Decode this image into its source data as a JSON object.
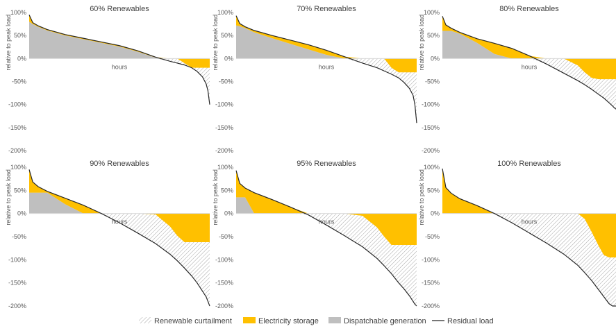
{
  "legend": [
    {
      "key": "curtailment",
      "label": "Renewable curtailment",
      "color": "#bfbfbf",
      "pattern": "hatch"
    },
    {
      "key": "storage",
      "label": "Electricity storage",
      "color": "#ffc000"
    },
    {
      "key": "dispatchable",
      "label": "Dispatchable generation",
      "color": "#bfbfbf"
    },
    {
      "key": "residual",
      "label": "Residual load",
      "color": "#404040"
    }
  ],
  "colors": {
    "storage": "#ffc000",
    "dispatchable": "#bfbfbf",
    "hatch": "#a6a6a6",
    "line": "#262626",
    "axis": "#d9d9d9"
  },
  "chart_data": [
    {
      "type": "area",
      "title": "60% Renewables",
      "xlabel": "hours",
      "ylabel": "relative to peak load",
      "ylim": [
        -200,
        100
      ],
      "yticks": [
        100,
        50,
        0,
        -50,
        -100,
        -150,
        -200
      ],
      "x": [
        0,
        0.02,
        0.05,
        0.1,
        0.2,
        0.3,
        0.4,
        0.5,
        0.6,
        0.7,
        0.78,
        0.82,
        0.86,
        0.9,
        0.93,
        0.96,
        0.98,
        0.99,
        1.0
      ],
      "series": [
        {
          "name": "Residual load",
          "values": [
            95,
            78,
            71,
            63,
            52,
            44,
            36,
            28,
            17,
            3,
            -6,
            -10,
            -14,
            -20,
            -28,
            -40,
            -55,
            -70,
            -100
          ]
        },
        {
          "name": "Dispatchable generation",
          "values": [
            80,
            75,
            69,
            61,
            50,
            42,
            34,
            26,
            15,
            2,
            0,
            0,
            0,
            0,
            0,
            0,
            0,
            0,
            0
          ]
        },
        {
          "name": "Electricity storage",
          "values": [
            0,
            0,
            0,
            0,
            0,
            0,
            0,
            0,
            0,
            0,
            0,
            0,
            -10,
            -20,
            -20,
            -20,
            -20,
            -20,
            -20
          ]
        }
      ]
    },
    {
      "type": "area",
      "title": "70% Renewables",
      "xlabel": "hours",
      "ylabel": "relative to peak load",
      "ylim": [
        -200,
        100
      ],
      "yticks": [
        100,
        50,
        0,
        -50,
        -100,
        -150,
        -200
      ],
      "x": [
        0,
        0.02,
        0.05,
        0.1,
        0.2,
        0.3,
        0.4,
        0.5,
        0.6,
        0.7,
        0.78,
        0.82,
        0.86,
        0.9,
        0.93,
        0.96,
        0.98,
        0.99,
        1.0
      ],
      "series": [
        {
          "name": "Residual load",
          "values": [
            93,
            76,
            69,
            61,
            50,
            40,
            30,
            18,
            4,
            -10,
            -20,
            -27,
            -34,
            -42,
            -52,
            -65,
            -80,
            -100,
            -140
          ]
        },
        {
          "name": "Dispatchable generation",
          "values": [
            72,
            70,
            66,
            57,
            44,
            32,
            20,
            8,
            0,
            0,
            0,
            0,
            0,
            0,
            0,
            0,
            0,
            0,
            0
          ]
        },
        {
          "name": "Electricity storage",
          "values": [
            0,
            0,
            0,
            0,
            0,
            0,
            0,
            0,
            0,
            0,
            0,
            0,
            -20,
            -30,
            -30,
            -30,
            -30,
            -30,
            -30
          ]
        }
      ]
    },
    {
      "type": "area",
      "title": "80% Renewables",
      "xlabel": "hours",
      "ylabel": "relative to peak load",
      "ylim": [
        -200,
        100
      ],
      "yticks": [
        100,
        50,
        0,
        -50,
        -100,
        -150,
        -200
      ],
      "x": [
        0,
        0.02,
        0.05,
        0.1,
        0.2,
        0.3,
        0.4,
        0.5,
        0.6,
        0.7,
        0.78,
        0.82,
        0.86,
        0.9,
        0.93,
        0.96,
        0.98,
        0.99,
        1.0
      ],
      "series": [
        {
          "name": "Residual load",
          "values": [
            92,
            73,
            66,
            57,
            43,
            33,
            22,
            6,
            -12,
            -32,
            -48,
            -57,
            -67,
            -78,
            -86,
            -96,
            -103,
            -107,
            -110
          ]
        },
        {
          "name": "Dispatchable generation",
          "values": [
            60,
            60,
            60,
            54,
            34,
            10,
            0,
            0,
            0,
            0,
            0,
            0,
            0,
            0,
            0,
            0,
            0,
            0,
            0
          ]
        },
        {
          "name": "Electricity storage",
          "values": [
            0,
            0,
            0,
            0,
            0,
            0,
            0,
            0,
            0,
            0,
            -15,
            -30,
            -42,
            -45,
            -45,
            -45,
            -45,
            -45,
            -45
          ]
        }
      ]
    },
    {
      "type": "area",
      "title": "90% Renewables",
      "xlabel": "hours",
      "ylabel": "relative to peak load",
      "ylim": [
        -200,
        100
      ],
      "yticks": [
        100,
        50,
        0,
        -50,
        -100,
        -150,
        -200
      ],
      "x": [
        0,
        0.02,
        0.05,
        0.1,
        0.2,
        0.3,
        0.4,
        0.5,
        0.6,
        0.7,
        0.78,
        0.82,
        0.86,
        0.9,
        0.93,
        0.96,
        0.98,
        0.99,
        1.0
      ],
      "series": [
        {
          "name": "Residual load",
          "values": [
            95,
            68,
            58,
            48,
            33,
            18,
            0,
            -20,
            -42,
            -65,
            -88,
            -102,
            -118,
            -135,
            -150,
            -168,
            -180,
            -190,
            -200
          ]
        },
        {
          "name": "Dispatchable generation",
          "values": [
            45,
            45,
            45,
            45,
            20,
            0,
            0,
            0,
            0,
            0,
            0,
            0,
            0,
            0,
            0,
            0,
            0,
            0,
            0
          ]
        },
        {
          "name": "Electricity storage",
          "values": [
            0,
            0,
            0,
            0,
            0,
            0,
            0,
            0,
            0,
            -2,
            -28,
            -48,
            -62,
            -62,
            -62,
            -62,
            -62,
            -62,
            -62
          ]
        }
      ]
    },
    {
      "type": "area",
      "title": "95% Renewables",
      "xlabel": "hours",
      "ylabel": "relative to peak load",
      "ylim": [
        -200,
        100
      ],
      "yticks": [
        100,
        50,
        0,
        -50,
        -100,
        -150,
        -200
      ],
      "x": [
        0,
        0.02,
        0.05,
        0.1,
        0.2,
        0.3,
        0.4,
        0.5,
        0.6,
        0.7,
        0.78,
        0.82,
        0.86,
        0.9,
        0.93,
        0.96,
        0.98,
        0.99,
        1.0
      ],
      "series": [
        {
          "name": "Residual load",
          "values": [
            93,
            65,
            55,
            45,
            30,
            14,
            -3,
            -25,
            -48,
            -72,
            -97,
            -113,
            -130,
            -150,
            -163,
            -178,
            -190,
            -196,
            -200
          ]
        },
        {
          "name": "Dispatchable generation",
          "values": [
            35,
            35,
            35,
            0,
            0,
            0,
            0,
            0,
            0,
            0,
            0,
            0,
            0,
            0,
            0,
            0,
            0,
            0,
            0
          ]
        },
        {
          "name": "Electricity storage",
          "values": [
            0,
            0,
            0,
            0,
            0,
            0,
            0,
            0,
            0,
            -5,
            -30,
            -50,
            -68,
            -68,
            -68,
            -68,
            -68,
            -68,
            -68
          ]
        }
      ]
    },
    {
      "type": "area",
      "title": "100% Renewables",
      "xlabel": "hours",
      "ylabel": "relative to peak load",
      "ylim": [
        -200,
        100
      ],
      "yticks": [
        100,
        50,
        0,
        -50,
        -100,
        -150,
        -200
      ],
      "x": [
        0,
        0.02,
        0.05,
        0.1,
        0.2,
        0.3,
        0.4,
        0.5,
        0.6,
        0.7,
        0.78,
        0.82,
        0.86,
        0.9,
        0.93,
        0.96,
        0.98,
        0.99,
        1.0
      ],
      "series": [
        {
          "name": "Residual load",
          "values": [
            97,
            56,
            44,
            32,
            17,
            0,
            -20,
            -42,
            -64,
            -88,
            -112,
            -128,
            -145,
            -165,
            -180,
            -195,
            -200,
            -200,
            -200
          ]
        },
        {
          "name": "Dispatchable generation",
          "values": [
            0,
            0,
            0,
            0,
            0,
            0,
            0,
            0,
            0,
            0,
            0,
            0,
            0,
            0,
            0,
            0,
            0,
            0,
            0
          ]
        },
        {
          "name": "Electricity storage",
          "values": [
            0,
            0,
            0,
            0,
            0,
            0,
            0,
            0,
            0,
            0,
            0,
            -12,
            -40,
            -70,
            -90,
            -95,
            -95,
            -95,
            -95
          ]
        }
      ]
    }
  ]
}
